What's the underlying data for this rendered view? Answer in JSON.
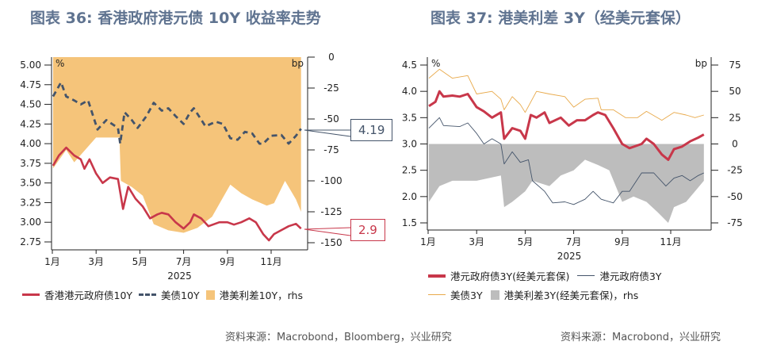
{
  "colors": {
    "hk10y": "#c8374a",
    "us10y": "#44546a",
    "spread10y": "#f5c47a",
    "hk3y_hedged": "#c8374a",
    "hk3y": "#44546a",
    "us3y": "#e8a94a",
    "spread3y": "#bdbdbd",
    "title": "#5f7390"
  },
  "chart_data": [
    {
      "type": "line",
      "title": "图表 36: 香港政府港元债 10Y 收益率走势",
      "xlabel": "2025",
      "x_ticks": [
        "1月",
        "3月",
        "5月",
        "7月",
        "9月",
        "11月"
      ],
      "y_unit": "%",
      "y2_unit": "bp",
      "ylim": [
        2.75,
        5.0
      ],
      "y_ticks": [
        "5.00",
        "4.75",
        "4.50",
        "4.25",
        "4.00",
        "3.75",
        "3.50",
        "3.25",
        "3.00",
        "2.75"
      ],
      "y2lim": [
        -150,
        0
      ],
      "y2_ticks": [
        "0",
        "-25",
        "-50",
        "-75",
        "-100",
        "-125",
        "-150"
      ],
      "series": [
        {
          "name": "香港港元政府债10Y",
          "style": "line",
          "axis": "left",
          "x": [
            "01-02",
            "01-10",
            "01-20",
            "02-01",
            "02-10",
            "02-15",
            "02-22",
            "03-01",
            "03-10",
            "03-20",
            "04-01",
            "04-08",
            "04-15",
            "04-25",
            "05-05",
            "05-15",
            "05-25",
            "06-01",
            "06-10",
            "06-20",
            "07-01",
            "07-10",
            "07-15",
            "07-25",
            "08-05",
            "08-20",
            "09-01",
            "09-10",
            "09-20",
            "10-01",
            "10-10",
            "10-20",
            "10-28",
            "11-05",
            "11-15",
            "11-25",
            "12-05",
            "12-12"
          ],
          "values": [
            3.72,
            3.85,
            3.95,
            3.85,
            3.8,
            3.68,
            3.8,
            3.62,
            3.5,
            3.57,
            3.55,
            3.17,
            3.45,
            3.3,
            3.2,
            3.05,
            3.1,
            3.12,
            3.1,
            3.0,
            2.92,
            3.0,
            3.1,
            3.05,
            2.95,
            3.0,
            3.0,
            2.97,
            3.0,
            3.05,
            3.0,
            2.85,
            2.77,
            2.85,
            2.9,
            2.95,
            2.98,
            2.92
          ]
        },
        {
          "name": "美债10Y",
          "style": "dashed",
          "axis": "left",
          "x": [
            "01-02",
            "01-13",
            "01-20",
            "02-01",
            "02-10",
            "02-20",
            "03-03",
            "03-15",
            "04-01",
            "04-04",
            "04-10",
            "04-20",
            "04-28",
            "05-10",
            "05-20",
            "06-01",
            "06-10",
            "06-20",
            "07-01",
            "07-10",
            "07-15",
            "08-01",
            "08-15",
            "08-25",
            "09-05",
            "09-15",
            "09-25",
            "10-05",
            "10-15",
            "10-20",
            "11-01",
            "11-15",
            "11-25",
            "12-05",
            "12-12"
          ],
          "values": [
            4.6,
            4.78,
            4.6,
            4.55,
            4.5,
            4.55,
            4.18,
            4.3,
            4.2,
            4.0,
            4.4,
            4.3,
            4.2,
            4.35,
            4.52,
            4.42,
            4.45,
            4.35,
            4.25,
            4.4,
            4.45,
            4.22,
            4.28,
            4.25,
            4.07,
            4.05,
            4.15,
            4.13,
            4.0,
            4.0,
            4.1,
            4.11,
            4.0,
            4.1,
            4.19
          ]
        },
        {
          "name": "港美利差10Y，rhs",
          "style": "area",
          "axis": "right",
          "x": [
            "01-02",
            "01-20",
            "02-01",
            "03-01",
            "04-03",
            "04-05",
            "04-20",
            "05-05",
            "05-20",
            "06-10",
            "07-01",
            "07-20",
            "08-10",
            "09-05",
            "09-20",
            "10-05",
            "10-25",
            "11-05",
            "11-20",
            "12-05",
            "12-12"
          ],
          "values": [
            -90,
            -75,
            -85,
            -65,
            -65,
            -100,
            -105,
            -112,
            -135,
            -140,
            -142,
            -138,
            -129,
            -103,
            -110,
            -115,
            -120,
            -118,
            -100,
            -115,
            -125
          ]
        }
      ],
      "callouts": {
        "us10y_last": "4.19",
        "hk10y_last": "2.9"
      }
    },
    {
      "type": "line",
      "title": "图表 37: 港美利差 3Y（经美元套保）",
      "xlabel": "2025",
      "x_ticks": [
        "1月",
        "3月",
        "5月",
        "7月",
        "9月",
        "11月"
      ],
      "y_unit": "%",
      "y2_unit": "bp",
      "ylim": [
        1.5,
        4.5
      ],
      "y_ticks": [
        "4.5",
        "4.0",
        "3.5",
        "3.0",
        "2.5",
        "2.0",
        "1.5"
      ],
      "y2lim": [
        -75,
        75
      ],
      "y2_ticks": [
        "75",
        "50",
        "25",
        "0",
        "-25",
        "-50",
        "-75"
      ],
      "series": [
        {
          "name": "港美利差3Y(经美元套保)，rhs",
          "style": "area",
          "axis": "right",
          "x": [
            "01-02",
            "01-15",
            "02-01",
            "03-01",
            "04-01",
            "04-05",
            "04-15",
            "05-01",
            "05-10",
            "06-01",
            "06-15",
            "07-01",
            "07-15",
            "08-01",
            "08-15",
            "09-01",
            "09-15",
            "10-01",
            "10-15",
            "10-28",
            "11-05",
            "11-20",
            "12-01",
            "12-12"
          ],
          "values": [
            -55,
            -40,
            -35,
            -35,
            -30,
            -60,
            -55,
            -45,
            -35,
            -40,
            -30,
            -25,
            -15,
            -20,
            -25,
            -55,
            -50,
            -55,
            -65,
            -75,
            -60,
            -55,
            -45,
            -35
          ]
        },
        {
          "name": "美债3Y",
          "style": "thin",
          "axis": "left",
          "x": [
            "01-02",
            "01-15",
            "02-01",
            "02-20",
            "03-01",
            "03-20",
            "04-01",
            "04-05",
            "04-15",
            "04-25",
            "05-01",
            "05-15",
            "06-01",
            "06-20",
            "07-01",
            "07-15",
            "08-01",
            "08-05",
            "08-20",
            "09-05",
            "09-20",
            "10-01",
            "10-20",
            "11-05",
            "11-20",
            "12-01",
            "12-12"
          ],
          "values": [
            4.25,
            4.42,
            4.25,
            4.3,
            3.95,
            4.0,
            3.85,
            3.65,
            3.9,
            3.75,
            3.6,
            4.0,
            3.95,
            3.9,
            3.7,
            3.85,
            3.87,
            3.65,
            3.65,
            3.5,
            3.5,
            3.62,
            3.45,
            3.6,
            3.55,
            3.5,
            3.55
          ]
        },
        {
          "name": "港元政府债3Y",
          "style": "thin",
          "axis": "left",
          "x": [
            "01-02",
            "01-15",
            "01-20",
            "02-10",
            "02-20",
            "03-01",
            "03-10",
            "03-20",
            "04-01",
            "04-05",
            "04-15",
            "04-25",
            "05-05",
            "05-10",
            "05-25",
            "06-05",
            "06-20",
            "07-01",
            "07-15",
            "07-25",
            "08-05",
            "08-20",
            "09-01",
            "09-10",
            "09-25",
            "10-10",
            "10-25",
            "11-05",
            "11-15",
            "11-25",
            "12-05",
            "12-12"
          ],
          "values": [
            3.3,
            3.5,
            3.35,
            3.33,
            3.4,
            3.2,
            3.0,
            3.1,
            3.0,
            2.62,
            2.85,
            2.65,
            2.7,
            2.3,
            2.1,
            1.88,
            1.9,
            1.85,
            1.95,
            2.1,
            1.95,
            1.88,
            2.1,
            2.1,
            2.45,
            2.45,
            2.2,
            2.35,
            2.4,
            2.3,
            2.4,
            2.45
          ]
        },
        {
          "name": "港元政府债3Y(经美元套保)",
          "style": "thick",
          "axis": "left",
          "x": [
            "01-02",
            "01-10",
            "01-15",
            "01-20",
            "02-01",
            "02-10",
            "02-20",
            "03-01",
            "03-10",
            "03-20",
            "04-01",
            "04-05",
            "04-15",
            "04-25",
            "05-01",
            "05-08",
            "05-15",
            "05-25",
            "06-01",
            "06-15",
            "06-25",
            "07-05",
            "07-15",
            "07-25",
            "08-01",
            "08-10",
            "08-20",
            "09-01",
            "09-10",
            "09-25",
            "10-01",
            "10-10",
            "10-20",
            "10-28",
            "11-05",
            "11-15",
            "11-25",
            "12-05",
            "12-12"
          ],
          "values": [
            3.72,
            3.8,
            4.0,
            3.9,
            3.92,
            3.9,
            3.95,
            3.7,
            3.62,
            3.5,
            3.6,
            3.1,
            3.3,
            3.25,
            3.1,
            3.55,
            3.5,
            3.6,
            3.4,
            3.5,
            3.35,
            3.45,
            3.45,
            3.55,
            3.6,
            3.55,
            3.3,
            3.0,
            2.92,
            3.0,
            3.1,
            3.0,
            2.8,
            2.7,
            2.9,
            2.95,
            3.05,
            3.12,
            3.18
          ]
        }
      ]
    }
  ],
  "legend": {
    "chart36": [
      "香港港元政府债10Y",
      "美债10Y",
      "港美利差10Y，rhs"
    ],
    "chart37": [
      "港元政府债3Y(经美元套保)",
      "港元政府债3Y",
      "美债3Y",
      "港美利差3Y(经美元套保)，rhs"
    ]
  },
  "sources": {
    "chart36": "资料来源：Macrobond，Bloomberg，兴业研究",
    "chart37": "资料来源：Macrobond，兴业研究"
  }
}
